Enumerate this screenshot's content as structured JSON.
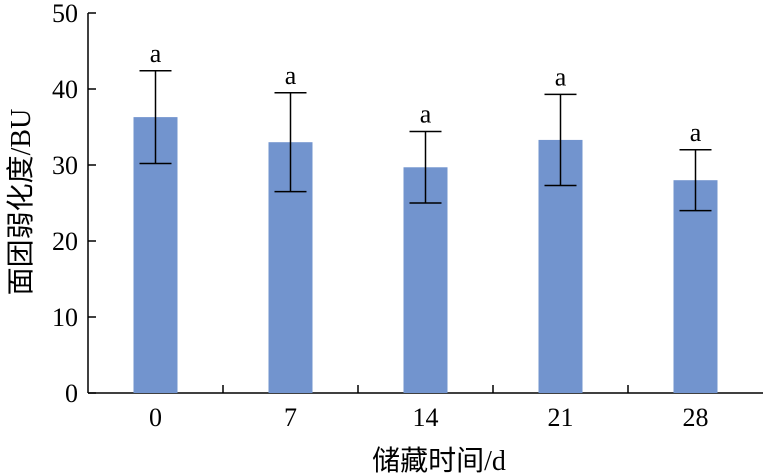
{
  "chart_data": {
    "type": "bar",
    "categories": [
      "0",
      "7",
      "14",
      "21",
      "28"
    ],
    "values": [
      36.3,
      33.0,
      29.7,
      33.3,
      28.0
    ],
    "error": [
      6.1,
      6.5,
      4.7,
      6.0,
      4.0
    ],
    "significance": [
      "a",
      "a",
      "a",
      "a",
      "a"
    ],
    "xlabel": "储藏时间/d",
    "ylabel": "面团弱化度/BU",
    "ylim": [
      0,
      50
    ],
    "yticks": [
      0,
      10,
      20,
      30,
      40,
      50
    ],
    "bar_color": "#7294CE",
    "grid": false
  }
}
